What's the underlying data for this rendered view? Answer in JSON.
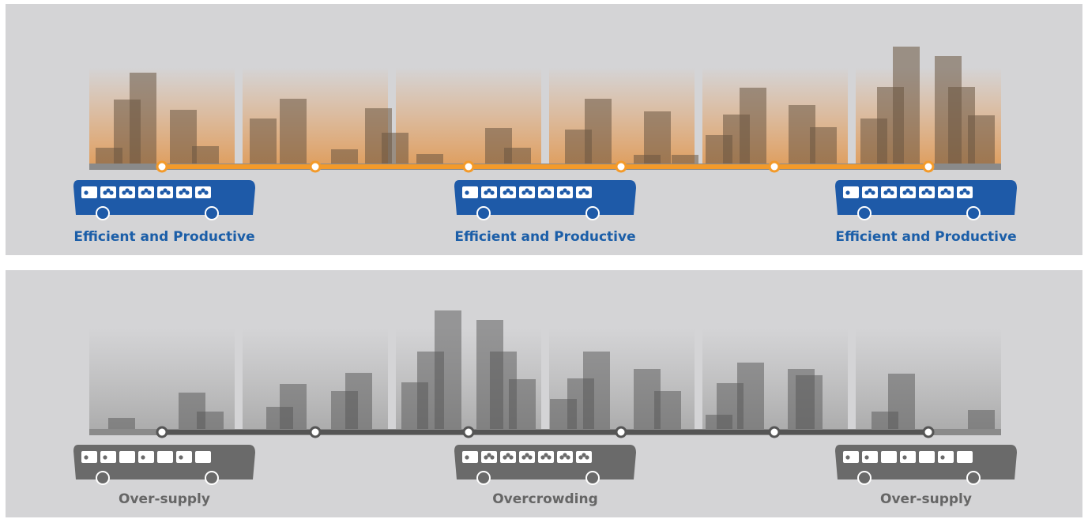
{
  "panels": [
    {
      "labels": [
        "Efficient and Productive",
        "Efficient and Productive",
        "Efficient and Productive"
      ]
    },
    {
      "labels": [
        "Over-supply",
        "Overcrowding",
        "Over-supply"
      ]
    }
  ]
}
